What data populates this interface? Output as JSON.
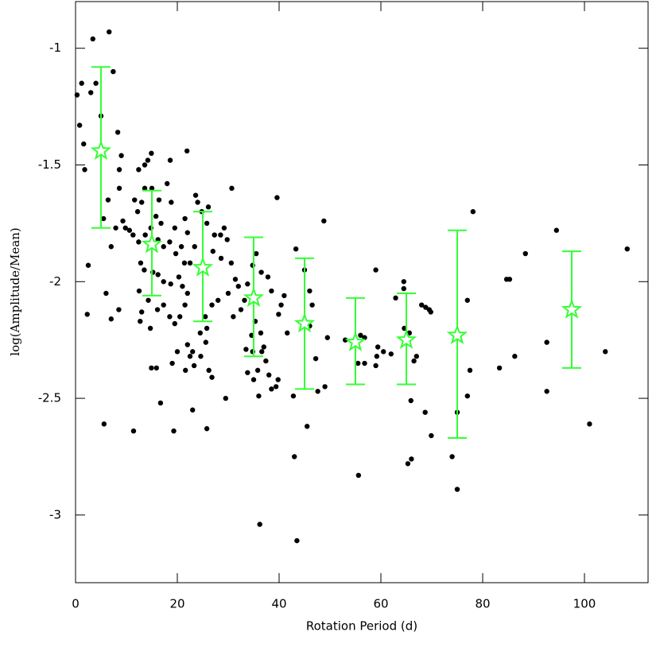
{
  "chart_data": {
    "type": "scatter",
    "xlabel": "Rotation Period (d)",
    "ylabel": "log(Amplitude/Mean)",
    "xlim": [
      0,
      112.5
    ],
    "ylim": [
      -3.29,
      -0.8
    ],
    "xticks": [
      0,
      20,
      40,
      60,
      80,
      100
    ],
    "yticks": [
      -1,
      -1.5,
      -2,
      -2.5,
      -3
    ],
    "points": {
      "color": "#000000",
      "x": [
        3.4,
        6.6,
        7.4,
        1.2,
        3.0,
        4.0,
        0.3,
        0.8,
        5.0,
        1.6,
        1.8,
        8.3,
        9.0,
        8.6,
        8.6,
        6.4,
        5.5,
        7.9,
        9.3,
        9.8,
        7.0,
        2.5,
        2.3,
        6.0,
        7.0,
        8.5,
        5.6,
        11.4,
        12.4,
        13.6,
        14.2,
        14.9,
        13.6,
        15.0,
        13.0,
        11.6,
        12.2,
        10.6,
        11.3,
        12.4,
        13.7,
        14.8,
        15.8,
        16.4,
        16.8,
        16.2,
        17.3,
        18.5,
        19.5,
        19.7,
        20.8,
        21.9,
        18.6,
        18.0,
        18.8,
        12.8,
        13.5,
        15.2,
        16.2,
        17.3,
        18.7,
        12.5,
        14.3,
        13.0,
        12.7,
        14.7,
        16.1,
        17.3,
        18.5,
        19.5,
        20.5,
        21.5,
        22.0,
        21.0,
        20.3,
        21.4,
        22.5,
        23.4,
        23.6,
        24.0,
        21.5,
        22.0,
        24.8,
        25.8,
        26.1,
        27.3,
        28.5,
        29.8,
        29.2,
        30.7,
        27.0,
        28.6,
        30.6,
        31.4,
        32.0,
        30.0,
        28.0,
        26.8,
        25.5,
        25.8,
        24.5,
        23.0,
        25.6,
        22.0,
        22.5,
        23.3,
        21.6,
        24.6,
        26.2,
        26.8,
        15.9,
        14.9,
        16.7,
        19.0,
        19.3,
        23.0,
        25.8,
        29.5,
        20.0,
        31.0,
        32.5,
        33.2,
        33.8,
        34.8,
        35.5,
        36.5,
        37.8,
        38.5,
        39.6,
        39.9,
        40.4,
        41.0,
        41.6,
        35.3,
        36.4,
        37.0,
        34.6,
        33.5,
        34.8,
        36.6,
        37.4,
        35.8,
        33.8,
        35.0,
        38.0,
        38.5,
        39.4,
        39.8,
        36.0,
        36.2,
        43.0,
        43.5,
        42.8,
        43.3,
        45.0,
        46.0,
        46.5,
        46.0,
        47.2,
        47.6,
        49.0,
        48.8,
        49.5,
        45.5,
        53.0,
        55.5,
        55.6,
        56.8,
        59.0,
        59.4,
        59.2,
        59.0,
        62.0,
        62.9,
        64.5,
        64.5,
        64.6,
        65.6,
        65.9,
        66.5,
        66.0,
        65.3,
        67.0,
        68.0,
        68.8,
        69.8,
        68.7,
        69.9,
        60.5,
        56.8,
        74.0,
        75.0,
        75.0,
        77.0,
        77.5,
        77.0,
        78.1,
        83.3,
        84.7,
        85.3,
        86.3,
        88.4,
        92.6,
        92.6,
        94.5,
        101.0,
        104.1,
        108.4,
        69.5,
        56.0
      ],
      "y": [
        -0.96,
        -0.93,
        -1.1,
        -1.15,
        -1.19,
        -1.15,
        -1.2,
        -1.33,
        -1.29,
        -1.41,
        -1.52,
        -1.36,
        -1.46,
        -1.52,
        -1.6,
        -1.65,
        -1.73,
        -1.77,
        -1.74,
        -1.77,
        -1.85,
        -1.93,
        -2.14,
        -2.05,
        -2.16,
        -2.12,
        -2.61,
        -2.64,
        -1.52,
        -1.5,
        -1.48,
        -1.45,
        -1.6,
        -1.6,
        -1.66,
        -1.65,
        -1.7,
        -1.78,
        -1.8,
        -1.83,
        -1.8,
        -1.77,
        -1.72,
        -1.65,
        -1.75,
        -1.82,
        -1.85,
        -1.83,
        -1.77,
        -1.88,
        -1.85,
        -1.44,
        -1.48,
        -1.58,
        -1.66,
        -1.92,
        -1.95,
        -1.96,
        -1.97,
        -2.0,
        -2.01,
        -2.04,
        -2.08,
        -2.13,
        -2.17,
        -2.2,
        -2.12,
        -2.1,
        -2.15,
        -2.18,
        -2.15,
        -2.1,
        -2.05,
        -2.02,
        -1.98,
        -1.92,
        -1.92,
        -1.85,
        -1.63,
        -1.66,
        -1.73,
        -1.79,
        -1.7,
        -1.75,
        -1.68,
        -1.8,
        -1.8,
        -1.82,
        -1.77,
        -1.6,
        -1.87,
        -1.9,
        -1.92,
        -1.99,
        -2.02,
        -2.05,
        -2.08,
        -2.1,
        -2.15,
        -2.2,
        -2.22,
        -2.3,
        -2.26,
        -2.27,
        -2.32,
        -2.36,
        -2.38,
        -2.32,
        -2.38,
        -2.41,
        -2.37,
        -2.37,
        -2.52,
        -2.35,
        -2.64,
        -2.55,
        -2.63,
        -2.5,
        -2.3,
        -2.15,
        -2.12,
        -2.08,
        -2.01,
        -1.93,
        -1.88,
        -1.96,
        -1.98,
        -2.04,
        -1.64,
        -2.14,
        -2.1,
        -2.06,
        -2.22,
        -2.17,
        -2.22,
        -2.28,
        -2.23,
        -2.29,
        -2.3,
        -2.3,
        -2.34,
        -2.38,
        -2.39,
        -2.42,
        -2.4,
        -2.46,
        -2.45,
        -2.42,
        -2.49,
        -3.04,
        -2.75,
        -3.11,
        -2.49,
        -1.86,
        -1.95,
        -2.04,
        -2.1,
        -2.19,
        -2.33,
        -2.47,
        -2.45,
        -1.74,
        -2.24,
        -2.62,
        -2.25,
        -2.35,
        -2.83,
        -2.24,
        -1.95,
        -2.28,
        -2.32,
        -2.36,
        -2.31,
        -2.07,
        -2.0,
        -2.03,
        -2.2,
        -2.22,
        -2.51,
        -2.34,
        -2.76,
        -2.78,
        -2.32,
        -2.1,
        -2.11,
        -2.13,
        -2.56,
        -2.66,
        -2.3,
        -2.35,
        -2.75,
        -2.56,
        -2.89,
        -2.08,
        -2.38,
        -2.49,
        -1.7,
        -2.37,
        -1.99,
        -1.99,
        -2.32,
        -1.88,
        -2.26,
        -2.47,
        -1.78,
        -2.61,
        -2.3,
        -1.86,
        -2.12,
        -2.23
      ]
    },
    "binned": {
      "color": "#33ff33",
      "x": [
        5,
        15,
        25,
        35,
        45,
        55,
        65,
        75,
        97.5
      ],
      "y": [
        -1.44,
        -1.84,
        -1.94,
        -2.07,
        -2.18,
        -2.26,
        -2.25,
        -2.23,
        -2.12
      ],
      "upper": [
        -1.08,
        -1.61,
        -1.7,
        -1.81,
        -1.9,
        -2.07,
        -2.05,
        -1.78,
        -1.87
      ],
      "lower": [
        -1.77,
        -2.06,
        -2.17,
        -2.32,
        -2.46,
        -2.44,
        -2.44,
        -2.67,
        -2.37
      ]
    }
  }
}
